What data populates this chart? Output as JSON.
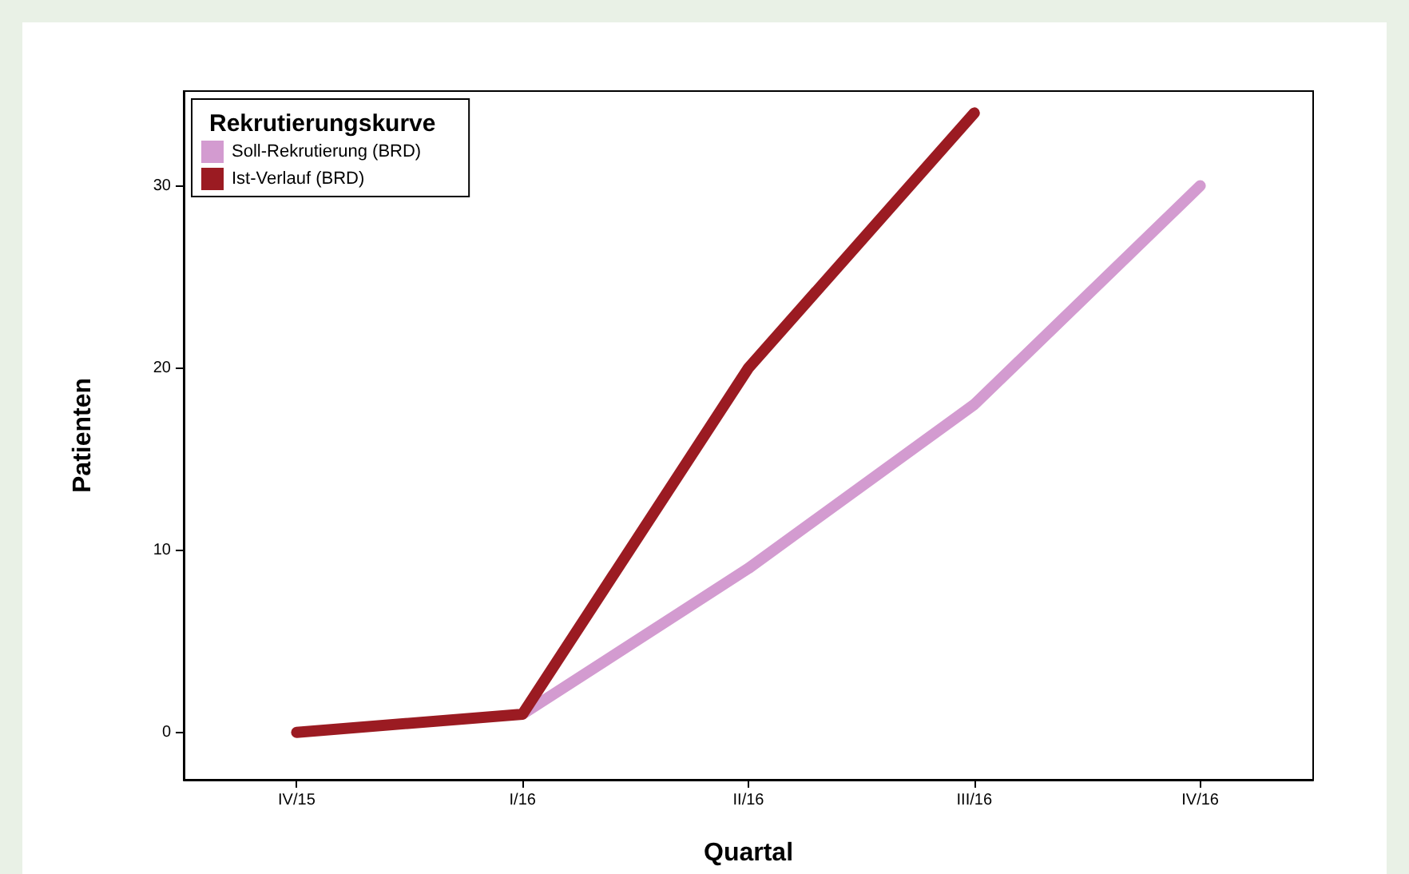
{
  "chart_data": {
    "type": "line",
    "xlabel": "Quartal",
    "ylabel": "Patienten",
    "legend_title": "Rekrutierungskurve",
    "categories": [
      "IV/15",
      "I/16",
      "II/16",
      "III/16",
      "IV/16"
    ],
    "series": [
      {
        "name": "Soll-Rekrutierung (BRD)",
        "color": "#d39bd0",
        "values": [
          null,
          1,
          9,
          18,
          30
        ]
      },
      {
        "name": "Ist-Verlauf (BRD)",
        "color": "#9b1b22",
        "values": [
          0,
          1,
          20,
          34,
          null
        ]
      }
    ],
    "ylim": [
      -2.6,
      35.2
    ],
    "yticks": [
      0,
      10,
      20,
      30
    ],
    "grid": false,
    "legend": "top left",
    "marker": "none",
    "line_style": "solid"
  }
}
